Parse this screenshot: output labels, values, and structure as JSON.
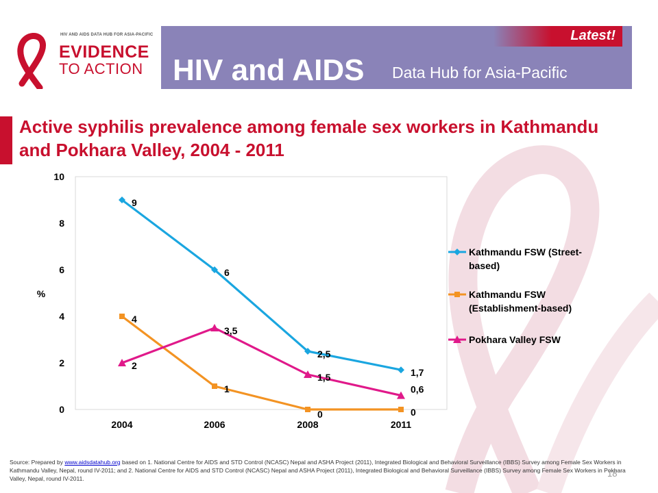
{
  "header": {
    "logo_small": "HIV AND AIDS DATA HUB FOR ASIA-PACIFIC",
    "logo_line1": "EVIDENCE",
    "logo_line2": "TO ACTION",
    "title": "HIV and AIDS",
    "subtitle": "Data Hub for Asia-Pacific",
    "latest": "Latest!"
  },
  "colors": {
    "banner": "#8a83b8",
    "accent": "#c8102e"
  },
  "slide_title": "Active syphilis prevalence among female sex workers in Kathmandu and Pokhara Valley, 2004 - 2011",
  "chart_data": {
    "type": "line",
    "categories": [
      "2004",
      "2006",
      "2008",
      "2011"
    ],
    "ylabel": "%",
    "ylim": [
      0,
      10
    ],
    "yticks": [
      "0",
      "2",
      "4",
      "6",
      "8",
      "10"
    ],
    "legend_position": "right",
    "series": [
      {
        "name": "Kathmandu FSW (Street-based)",
        "legend_lines": [
          "Kathmandu FSW (Street-",
          "based)"
        ],
        "color": "#1aa6e0",
        "marker": "diamond",
        "values": [
          9,
          6,
          2.5,
          1.7
        ],
        "labels": [
          "9",
          "6",
          "2,5",
          "1,7"
        ]
      },
      {
        "name": "Kathmandu FSW (Establishment-based)",
        "legend_lines": [
          "Kathmandu FSW",
          "(Establishment-based)"
        ],
        "color": "#f39323",
        "marker": "square",
        "values": [
          4,
          1,
          0,
          0
        ],
        "labels": [
          "4",
          "1",
          "0",
          "0"
        ]
      },
      {
        "name": "Pokhara Valley FSW",
        "legend_lines": [
          "Pokhara Valley FSW"
        ],
        "color": "#e0198a",
        "marker": "triangle",
        "values": [
          2,
          3.5,
          1.5,
          0.6
        ],
        "labels": [
          "2",
          "3,5",
          "1,5",
          "0,6"
        ]
      }
    ]
  },
  "source": {
    "prefix": "Source: Prepared by ",
    "link": "www.aidsdatahub.org",
    "text": " based on 1. National Centre for AIDS and STD Control (NCASC) Nepal and ASHA Project (2011), Integrated Biological and Behavioral Surveillance (IBBS) Survey among Female Sex Workers in Kathmandu Valley, Nepal, round IV-2011; and 2. National Centre for AIDS and STD Control (NCASC) Nepal and ASHA Project (2011), Integrated Biological and Behavioral Surveillance (IBBS) Survey among Female Sex Workers in Pokhara Valley, Nepal, round IV-2011."
  },
  "slide_number": "18"
}
